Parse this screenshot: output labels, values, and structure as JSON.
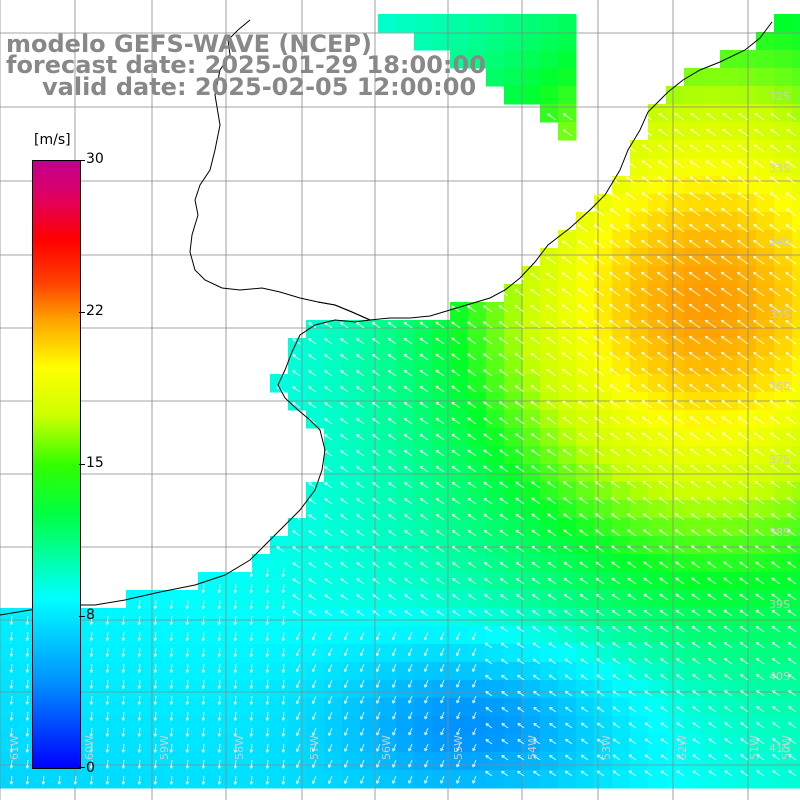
{
  "title": {
    "line1": "modelo GEFS-WAVE (NCEP)",
    "line2": "forecast date: 2025-01-29 18:00:00",
    "line3": "valid date: 2025-02-05 12:00:00"
  },
  "colorbar": {
    "units": "[m/s]",
    "ticks": [
      "30",
      "22",
      "15",
      "8",
      "0"
    ],
    "colors": [
      "#0000ff",
      "#0090ff",
      "#00ffff",
      "#00ff40",
      "#ccff00",
      "#ffff00",
      "#ff4000",
      "#c00090"
    ]
  },
  "map": {
    "variable": "wind speed",
    "lon_labels": [
      "61W",
      "60W",
      "59W",
      "58W",
      "57W",
      "56W",
      "55W",
      "54W",
      "53W",
      "52W",
      "51W",
      "50W"
    ],
    "lat_labels": [
      "32S",
      "33S",
      "34S",
      "35S",
      "36S",
      "37S",
      "38S",
      "39S",
      "40S",
      "41S"
    ],
    "land_color": "#ffffff",
    "coast_color": "#000000",
    "grid_color": "#888888"
  }
}
